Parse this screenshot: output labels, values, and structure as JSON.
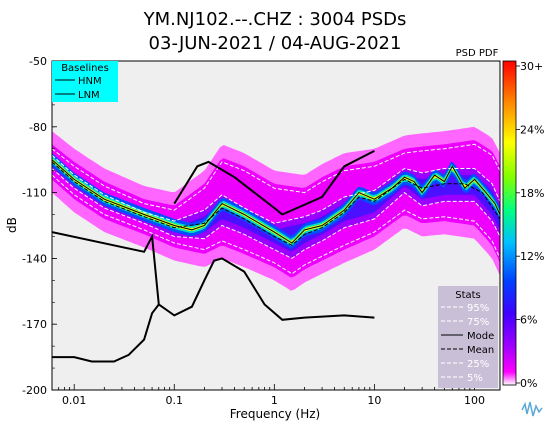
{
  "chart_data": {
    "type": "heatmap",
    "title": "YM.NJ102.--.CHZ : 3004 PSDs",
    "subtitle": "03-JUN-2021 / 04-AUG-2021",
    "xlabel": "Frequency (Hz)",
    "ylabel": "dB",
    "x_scale": "log",
    "xlim": [
      0.006,
      180
    ],
    "ylim": [
      -200,
      -50
    ],
    "x_ticks": [
      {
        "value": 0.01,
        "label": "0.01"
      },
      {
        "value": 0.1,
        "label": "0.1"
      },
      {
        "value": 1,
        "label": "1"
      },
      {
        "value": 10,
        "label": "10"
      },
      {
        "value": 100,
        "label": "100"
      }
    ],
    "y_ticks": [
      {
        "value": -50,
        "label": "-50"
      },
      {
        "value": -80,
        "label": "-80"
      },
      {
        "value": -110,
        "label": "-110"
      },
      {
        "value": -140,
        "label": "-140"
      },
      {
        "value": -170,
        "label": "-170"
      },
      {
        "value": -200,
        "label": "-200"
      }
    ],
    "colorbar": {
      "title": "PSD PDF",
      "ticks": [
        "30+",
        "24%",
        "18%",
        "12%",
        "6%",
        "0%"
      ],
      "colors": [
        "#ff0000",
        "#ff8000",
        "#ffff00",
        "#80ff00",
        "#00ff80",
        "#00c0ff",
        "#0040ff",
        "#4000ff",
        "#a000ff",
        "#ff00ff",
        "#ffffff"
      ]
    },
    "baselines": {
      "title": "Baselines",
      "entries": [
        "HNM",
        "LNM"
      ],
      "hnm": [
        [
          0.1,
          -115
        ],
        [
          0.17,
          -98
        ],
        [
          0.22,
          -96
        ],
        [
          0.4,
          -103
        ],
        [
          1,
          -117
        ],
        [
          1.2,
          -120
        ],
        [
          3,
          -112
        ],
        [
          5,
          -98
        ],
        [
          10,
          -91
        ]
      ],
      "lnm": [
        [
          0.006,
          -128
        ],
        [
          0.05,
          -137
        ],
        [
          0.06,
          -130
        ],
        [
          0.07,
          -161
        ],
        [
          0.1,
          -166
        ],
        [
          0.15,
          -162
        ],
        [
          0.2,
          -150
        ],
        [
          0.25,
          -141
        ],
        [
          0.3,
          -140
        ],
        [
          0.5,
          -146
        ],
        [
          0.8,
          -161
        ],
        [
          1.2,
          -168
        ],
        [
          2,
          -167
        ],
        [
          5,
          -166
        ],
        [
          10,
          -167
        ]
      ],
      "lnm_lowf": [
        [
          0.006,
          -185
        ],
        [
          0.01,
          -185
        ],
        [
          0.015,
          -187
        ],
        [
          0.025,
          -187
        ],
        [
          0.035,
          -184
        ],
        [
          0.05,
          -177
        ],
        [
          0.06,
          -165
        ],
        [
          0.07,
          -161
        ]
      ]
    },
    "stats": {
      "title": "Stats",
      "entries": [
        "95%",
        "75%",
        "Mode",
        "Mean",
        "25%",
        "5%"
      ],
      "mode": [
        [
          0.006,
          -95
        ],
        [
          0.01,
          -104
        ],
        [
          0.02,
          -113
        ],
        [
          0.05,
          -120
        ],
        [
          0.1,
          -125
        ],
        [
          0.15,
          -127
        ],
        [
          0.2,
          -125
        ],
        [
          0.3,
          -115
        ],
        [
          0.5,
          -120
        ],
        [
          1,
          -128
        ],
        [
          1.5,
          -133
        ],
        [
          2,
          -127
        ],
        [
          3,
          -125
        ],
        [
          5,
          -118
        ],
        [
          7,
          -110
        ],
        [
          10,
          -113
        ],
        [
          15,
          -108
        ],
        [
          20,
          -103
        ],
        [
          25,
          -105
        ],
        [
          30,
          -110
        ],
        [
          40,
          -102
        ],
        [
          50,
          -105
        ],
        [
          60,
          -98
        ],
        [
          80,
          -108
        ],
        [
          100,
          -104
        ],
        [
          130,
          -110
        ],
        [
          160,
          -115
        ],
        [
          180,
          -120
        ]
      ],
      "mean": [
        [
          0.006,
          -96
        ],
        [
          0.01,
          -105
        ],
        [
          0.02,
          -114
        ],
        [
          0.05,
          -121
        ],
        [
          0.1,
          -126
        ],
        [
          0.2,
          -124
        ],
        [
          0.3,
          -117
        ],
        [
          0.5,
          -122
        ],
        [
          1,
          -130
        ],
        [
          1.5,
          -134
        ],
        [
          2,
          -129
        ],
        [
          3,
          -126
        ],
        [
          5,
          -119
        ],
        [
          7,
          -112
        ],
        [
          10,
          -114
        ],
        [
          20,
          -104
        ],
        [
          30,
          -108
        ],
        [
          50,
          -106
        ],
        [
          80,
          -106
        ],
        [
          120,
          -110
        ],
        [
          180,
          -122
        ]
      ],
      "p95": [
        [
          0.006,
          -90
        ],
        [
          0.01,
          -98
        ],
        [
          0.02,
          -107
        ],
        [
          0.05,
          -115
        ],
        [
          0.1,
          -118
        ],
        [
          0.2,
          -108
        ],
        [
          0.3,
          -96
        ],
        [
          0.5,
          -100
        ],
        [
          1,
          -108
        ],
        [
          2,
          -110
        ],
        [
          3,
          -105
        ],
        [
          5,
          -100
        ],
        [
          10,
          -98
        ],
        [
          20,
          -92
        ],
        [
          30,
          -91
        ],
        [
          50,
          -90
        ],
        [
          100,
          -88
        ],
        [
          150,
          -93
        ],
        [
          180,
          -100
        ]
      ],
      "p75": [
        [
          0.006,
          -93
        ],
        [
          0.01,
          -102
        ],
        [
          0.02,
          -111
        ],
        [
          0.05,
          -119
        ],
        [
          0.1,
          -123
        ],
        [
          0.2,
          -118
        ],
        [
          0.3,
          -111
        ],
        [
          0.5,
          -117
        ],
        [
          1,
          -124
        ],
        [
          2,
          -121
        ],
        [
          3,
          -118
        ],
        [
          5,
          -112
        ],
        [
          10,
          -109
        ],
        [
          20,
          -99
        ],
        [
          30,
          -101
        ],
        [
          50,
          -99
        ],
        [
          100,
          -99
        ],
        [
          150,
          -106
        ],
        [
          180,
          -114
        ]
      ],
      "p25": [
        [
          0.006,
          -99
        ],
        [
          0.01,
          -108
        ],
        [
          0.02,
          -117
        ],
        [
          0.05,
          -124
        ],
        [
          0.1,
          -130
        ],
        [
          0.2,
          -131
        ],
        [
          0.3,
          -125
        ],
        [
          0.5,
          -129
        ],
        [
          1,
          -136
        ],
        [
          1.5,
          -140
        ],
        [
          2,
          -136
        ],
        [
          3,
          -132
        ],
        [
          5,
          -126
        ],
        [
          10,
          -122
        ],
        [
          20,
          -110
        ],
        [
          30,
          -116
        ],
        [
          50,
          -114
        ],
        [
          100,
          -114
        ],
        [
          150,
          -123
        ],
        [
          180,
          -130
        ]
      ],
      "p5": [
        [
          0.006,
          -102
        ],
        [
          0.01,
          -111
        ],
        [
          0.02,
          -120
        ],
        [
          0.05,
          -127
        ],
        [
          0.1,
          -133
        ],
        [
          0.2,
          -136
        ],
        [
          0.3,
          -132
        ],
        [
          0.5,
          -136
        ],
        [
          1,
          -142
        ],
        [
          1.5,
          -147
        ],
        [
          2,
          -143
        ],
        [
          3,
          -139
        ],
        [
          5,
          -134
        ],
        [
          10,
          -128
        ],
        [
          20,
          -118
        ],
        [
          30,
          -122
        ],
        [
          50,
          -121
        ],
        [
          100,
          -123
        ],
        [
          150,
          -132
        ],
        [
          180,
          -140
        ]
      ]
    }
  }
}
